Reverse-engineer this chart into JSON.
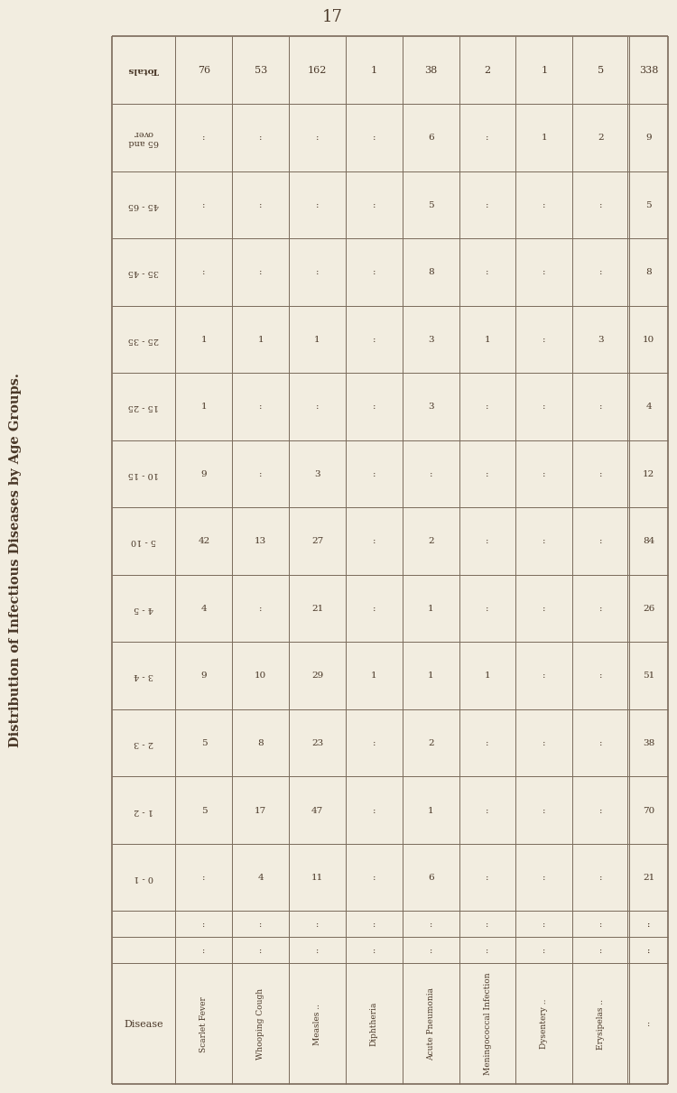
{
  "title": "Distribution of Infectious Diseases by Age Groups.",
  "page_number": "17",
  "background_color": "#f2ede0",
  "text_color": "#4a3828",
  "line_color": "#7a6a5a",
  "diseases": [
    "Scarlet Fever",
    "Whooping Cough",
    "Measles ..",
    "Diphtheria",
    "Acute Pneumonia",
    "Meningococcal Infection",
    "Dysentery ..",
    "Erysipelas .."
  ],
  "disease_dots": [
    "..",
    "..",
    "..",
    "",
    "..",
    "",
    "..",
    ".."
  ],
  "age_groups": [
    "TOTALS",
    "65 and\nover",
    "45 - 65",
    "35 - 45",
    "25 - 35",
    "15 - 25",
    "10 - 15",
    "5 - 10",
    "4 - 5",
    "3 - 4",
    "2 - 3",
    "1 - 2",
    "0 - 1"
  ],
  "data_by_age": {
    "TOTALS": [
      76,
      53,
      162,
      1,
      38,
      2,
      1,
      5
    ],
    "65 and over": [
      ":",
      ":",
      ":",
      ":",
      6,
      ":",
      1,
      2
    ],
    "45 - 65": [
      ":",
      ":",
      ":",
      ":",
      5,
      ":",
      ":",
      ":"
    ],
    "35 - 45": [
      ":",
      ":",
      ":",
      ":",
      8,
      ":",
      ":",
      ":"
    ],
    "25 - 35": [
      1,
      1,
      1,
      ":",
      3,
      1,
      ":",
      3
    ],
    "15 - 25": [
      1,
      ":",
      ":",
      ":",
      3,
      ":",
      ":",
      ":"
    ],
    "10 - 15": [
      9,
      ":",
      3,
      ":",
      ":",
      ":",
      ":",
      ":"
    ],
    "5 - 10": [
      42,
      13,
      27,
      ":",
      2,
      ":",
      ":",
      ":"
    ],
    "4 - 5": [
      4,
      ":",
      21,
      ":",
      1,
      ":",
      ":",
      ":"
    ],
    "3 - 4": [
      9,
      10,
      29,
      1,
      1,
      1,
      ":",
      ":"
    ],
    "2 - 3": [
      5,
      8,
      23,
      ":",
      2,
      ":",
      ":",
      ":"
    ],
    "1 - 2": [
      5,
      17,
      47,
      ":",
      1,
      ":",
      ":",
      ":"
    ],
    "0 - 1": [
      ":",
      4,
      11,
      ":",
      6,
      ":",
      ":",
      ":"
    ]
  },
  "row_totals": [
    338,
    9,
    5,
    8,
    10,
    4,
    12,
    84,
    26,
    51,
    38,
    70,
    21
  ]
}
